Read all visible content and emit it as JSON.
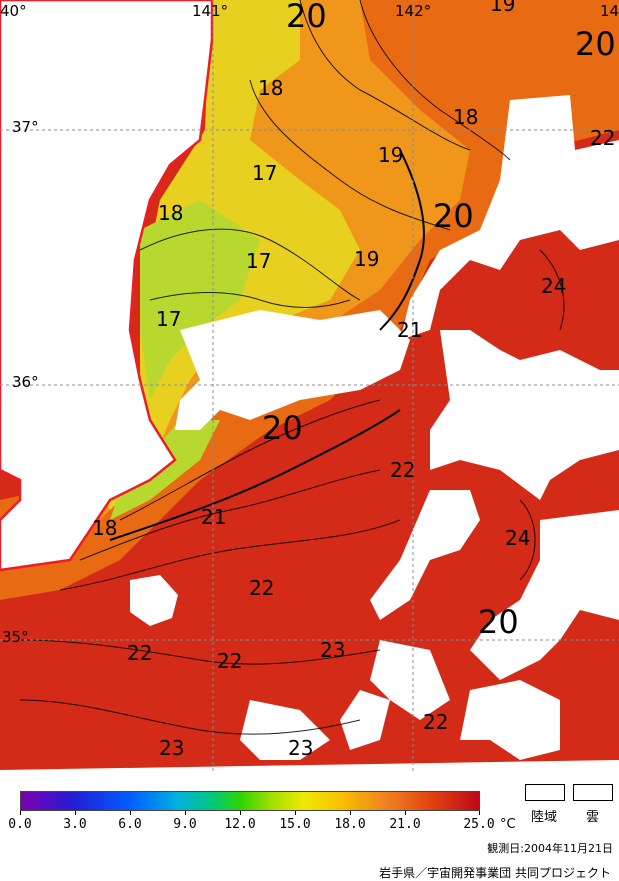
{
  "map": {
    "grid": {
      "lon_labels": [
        "40°",
        "141°",
        "142°",
        "14"
      ],
      "lat_labels": [
        "37°",
        "36°",
        "35°"
      ]
    },
    "contour_labels": {
      "c1": "20",
      "c2": "19",
      "c3": "20",
      "c4": "18",
      "c5": "18",
      "c6": "22",
      "c7": "17",
      "c8": "19",
      "c9": "18",
      "c10": "20",
      "c11": "17",
      "c12": "19",
      "c13": "24",
      "c14": "17",
      "c15": "21",
      "c16": "20",
      "c17": "22",
      "c18": "18",
      "c19": "21",
      "c20": "24",
      "c21": "22",
      "c22": "20",
      "c23": "23",
      "c24": "22",
      "c25": "22",
      "c26": "22",
      "c27": "23",
      "c28": "23"
    },
    "colors": {
      "land": "#ffffff",
      "cloud": "#ffffff",
      "coast": "#ee1c24",
      "grid": "#8c8c8c"
    }
  },
  "legend": {
    "ticks": [
      "0.0",
      "3.0",
      "6.0",
      "9.0",
      "12.0",
      "15.0",
      "18.0",
      "21.0",
      "25.0"
    ],
    "unit": "°C",
    "land_label": "陸域",
    "cloud_label": "雲",
    "range": [
      0,
      25
    ]
  },
  "footer": {
    "observation_date": "観測日:2004年11月21日",
    "credit": "岩手県／宇宙開発事業団 共同プロジェクト"
  }
}
